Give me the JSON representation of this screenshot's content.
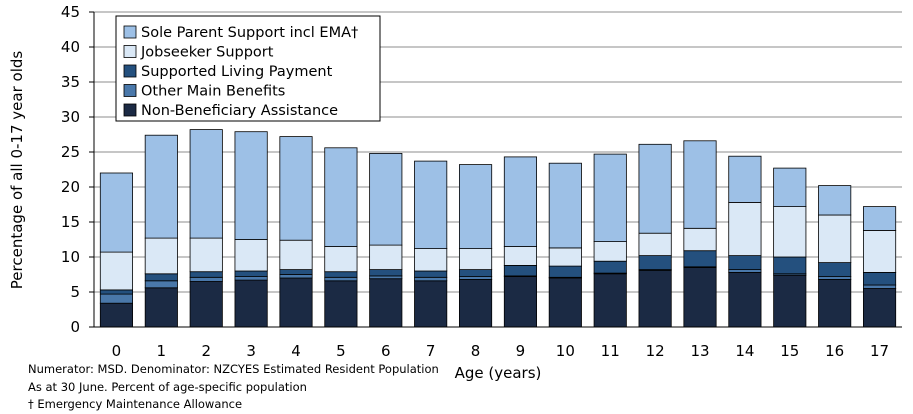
{
  "chart_data": {
    "type": "bar",
    "stacked": true,
    "ylabel": "Percentage of all 0-17 year olds",
    "xlabel": "Age (years)",
    "ylim": [
      0,
      45
    ],
    "yticks": [
      0,
      5,
      10,
      15,
      20,
      25,
      30,
      35,
      40,
      45
    ],
    "categories": [
      "0",
      "1",
      "2",
      "3",
      "4",
      "5",
      "6",
      "7",
      "8",
      "9",
      "10",
      "11",
      "12",
      "13",
      "14",
      "15",
      "16",
      "17"
    ],
    "legend_position": "top-left",
    "series": [
      {
        "name": "Non-Beneficiary Assistance",
        "color": "#1b2a44",
        "values": [
          3.4,
          5.6,
          6.5,
          6.7,
          7.0,
          6.6,
          6.9,
          6.6,
          6.8,
          7.2,
          7.0,
          7.6,
          8.1,
          8.5,
          7.8,
          7.4,
          6.8,
          5.5
        ]
      },
      {
        "name": "Other Main Benefits",
        "color": "#4a78aa",
        "values": [
          1.3,
          1.0,
          0.6,
          0.5,
          0.5,
          0.5,
          0.4,
          0.5,
          0.4,
          0.1,
          0.1,
          0.1,
          0.1,
          0.1,
          0.4,
          0.2,
          0.4,
          0.5
        ]
      },
      {
        "name": "Supported Living Payment",
        "color": "#24507e",
        "values": [
          0.6,
          1.0,
          0.8,
          0.8,
          0.7,
          0.8,
          0.9,
          0.9,
          1.0,
          1.5,
          1.6,
          1.7,
          2.0,
          2.3,
          2.0,
          2.4,
          2.0,
          1.8
        ]
      },
      {
        "name": "Jobseeker Support",
        "color": "#dae8f6",
        "values": [
          5.4,
          5.1,
          4.8,
          4.5,
          4.2,
          3.6,
          3.5,
          3.2,
          3.0,
          2.7,
          2.6,
          2.8,
          3.2,
          3.2,
          7.6,
          7.2,
          6.8,
          6.0
        ]
      },
      {
        "name": "Sole Parent Support incl EMA†",
        "color": "#9dc0e6",
        "values": [
          11.3,
          14.7,
          15.5,
          15.4,
          14.8,
          14.1,
          13.1,
          12.5,
          12.0,
          12.8,
          12.1,
          12.5,
          12.7,
          12.5,
          6.6,
          5.5,
          4.2,
          3.4
        ]
      }
    ]
  },
  "notes": [
    "Numerator: MSD. Denominator: NZCYES Estimated Resident Population",
    "As at 30 June. Percent of age-specific population",
    "† Emergency Maintenance Allowance"
  ]
}
